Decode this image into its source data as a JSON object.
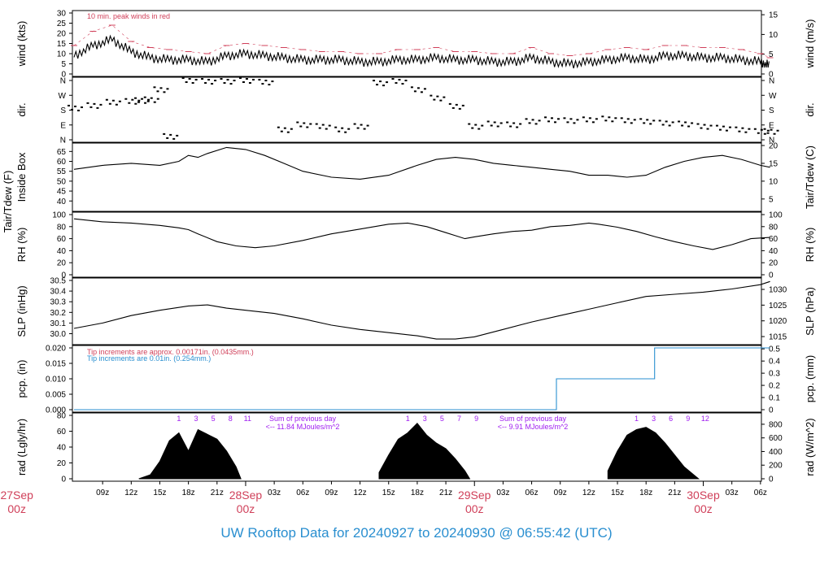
{
  "title": "UW Rooftop Data for 20240927  to  20240930 @ 06:55:42  (UTC)",
  "colors": {
    "red": "#d0405a",
    "blue": "#2a8fd0",
    "purple": "#a020f0",
    "black": "#000000"
  },
  "x_axis": {
    "hour_ticks": [
      "09z",
      "12z",
      "15z",
      "18z",
      "21z",
      "03z",
      "06z",
      "09z",
      "12z",
      "15z",
      "18z",
      "21z",
      "03z",
      "06z",
      "09z",
      "12z",
      "15z",
      "18z",
      "21z",
      "03z",
      "06z"
    ],
    "day_labels": [
      {
        "date": "27Sep",
        "time": "00z"
      },
      {
        "date": "28Sep",
        "time": "00z"
      },
      {
        "date": "29Sep",
        "time": "00z"
      },
      {
        "date": "30Sep",
        "time": "00z"
      }
    ]
  },
  "chart_data": [
    {
      "id": "wind",
      "type": "line",
      "ylabel_left": "wind (kts)",
      "ylabel_right": "wind (m/s)",
      "yticks_left": [
        "0",
        "5",
        "10",
        "15",
        "20",
        "25",
        "30"
      ],
      "yticks_right": [
        "0",
        "5",
        "10",
        "15"
      ],
      "ylim": [
        0,
        30
      ],
      "annotation": "10 min. peak winds in red",
      "series": [
        {
          "name": "wind",
          "x_hours": [
            6,
            8,
            10,
            12,
            14,
            16,
            18,
            20,
            22,
            24,
            26,
            28,
            30,
            32,
            34,
            36,
            38,
            40,
            42,
            44,
            46,
            48,
            50,
            52,
            54,
            56,
            58,
            60,
            62,
            64,
            66,
            68,
            70,
            72,
            74,
            76,
            78,
            79
          ],
          "values": [
            9,
            14,
            17,
            11,
            8,
            7,
            7,
            6,
            9,
            10,
            9,
            8,
            7,
            7,
            7,
            6,
            6,
            7,
            7,
            8,
            7,
            7,
            6,
            6,
            8,
            6,
            5,
            6,
            7,
            8,
            7,
            9,
            9,
            8,
            8,
            7,
            6,
            4
          ]
        },
        {
          "name": "10 min. peak winds",
          "x_hours": [
            6,
            8,
            10,
            12,
            14,
            16,
            18,
            20,
            22,
            24,
            26,
            28,
            30,
            32,
            34,
            36,
            38,
            40,
            42,
            44,
            46,
            48,
            50,
            52,
            54,
            56,
            58,
            60,
            62,
            64,
            66,
            68,
            70,
            72,
            74,
            76,
            78,
            79
          ],
          "values": [
            14,
            21,
            24,
            16,
            13,
            12,
            11,
            10,
            14,
            15,
            14,
            13,
            12,
            11,
            11,
            10,
            10,
            12,
            12,
            13,
            11,
            11,
            10,
            10,
            13,
            10,
            9,
            10,
            12,
            13,
            12,
            14,
            14,
            13,
            13,
            12,
            10,
            8
          ]
        }
      ]
    },
    {
      "id": "dir",
      "type": "scatter",
      "ylabel_left": "dir.",
      "ylabel_right": "dir.",
      "yticks_left": [
        "N",
        "E",
        "S",
        "W",
        "N"
      ],
      "yticks_right": [
        "N",
        "E",
        "S",
        "W",
        "N"
      ],
      "ylim": [
        0,
        360
      ],
      "series": [
        {
          "name": "direction",
          "x_hours": [
            6,
            8,
            10,
            12,
            13,
            14,
            15,
            16,
            18,
            20,
            22,
            24,
            26,
            28,
            30,
            32,
            34,
            36,
            38,
            40,
            42,
            44,
            46,
            48,
            50,
            52,
            54,
            56,
            58,
            60,
            62,
            64,
            66,
            68,
            70,
            72,
            74,
            76,
            78,
            79
          ],
          "values": [
            190,
            205,
            225,
            230,
            235,
            240,
            300,
            20,
            355,
            350,
            350,
            355,
            345,
            60,
            90,
            80,
            60,
            80,
            340,
            350,
            300,
            250,
            200,
            80,
            95,
            90,
            110,
            120,
            115,
            120,
            125,
            115,
            110,
            100,
            95,
            80,
            70,
            60,
            50,
            50
          ]
        }
      ]
    },
    {
      "id": "temp",
      "type": "line",
      "ylabel_left": "Tair/Tdew (F)",
      "ylabel_left2": "Inside Box",
      "ylabel_right": "Tair/Tdew (C)",
      "yticks_left": [
        "40",
        "45",
        "50",
        "55",
        "60",
        "65"
      ],
      "yticks_right": [
        "5",
        "10",
        "15",
        "20"
      ],
      "ylim": [
        36,
        68
      ],
      "series": [
        {
          "name": "Tair",
          "x_hours": [
            6,
            9,
            12,
            15,
            17,
            18,
            19,
            20,
            22,
            24,
            26,
            28,
            30,
            33,
            36,
            39,
            42,
            44,
            46,
            48,
            50,
            52,
            54,
            56,
            58,
            60,
            62,
            64,
            66,
            68,
            70,
            72,
            74,
            76,
            78,
            79
          ],
          "values": [
            56,
            58,
            59,
            58,
            60,
            63,
            62,
            64,
            67,
            66,
            63,
            59,
            55,
            52,
            51,
            53,
            58,
            61,
            62,
            61,
            59,
            58,
            57,
            56,
            55,
            53,
            53,
            52,
            53,
            57,
            60,
            62,
            63,
            61,
            58,
            57
          ]
        }
      ]
    },
    {
      "id": "rh",
      "type": "line",
      "ylabel_left": "RH (%)",
      "ylabel_right": "RH (%)",
      "yticks_left": [
        "0",
        "20",
        "40",
        "60",
        "80",
        "100"
      ],
      "yticks_right": [
        "0",
        "20",
        "40",
        "60",
        "80",
        "100"
      ],
      "ylim": [
        0,
        100
      ],
      "series": [
        {
          "name": "RH",
          "x_hours": [
            6,
            9,
            12,
            15,
            17,
            18,
            19,
            21,
            23,
            25,
            27,
            30,
            33,
            36,
            39,
            41,
            43,
            45,
            46,
            47,
            48,
            50,
            52,
            54,
            56,
            58,
            60,
            61,
            63,
            65,
            67,
            69,
            71,
            73,
            75,
            77,
            79
          ],
          "values": [
            93,
            88,
            86,
            82,
            78,
            75,
            68,
            55,
            48,
            45,
            48,
            57,
            68,
            76,
            84,
            86,
            80,
            70,
            65,
            60,
            63,
            68,
            72,
            74,
            80,
            82,
            86,
            84,
            79,
            72,
            63,
            55,
            48,
            42,
            50,
            60,
            62
          ]
        }
      ]
    },
    {
      "id": "slp",
      "type": "line",
      "ylabel_left": "SLP (inHg)",
      "ylabel_right": "SLP (hPa)",
      "yticks_left": [
        "30.0",
        "30.1",
        "30.2",
        "30.3",
        "30.4",
        "30.5"
      ],
      "yticks_right": [
        "1015",
        "1020",
        "1025",
        "1030"
      ],
      "ylim": [
        29.92,
        30.5
      ],
      "series": [
        {
          "name": "SLP",
          "x_hours": [
            6,
            9,
            12,
            15,
            18,
            20,
            22,
            24,
            27,
            30,
            33,
            36,
            39,
            42,
            44,
            46,
            48,
            51,
            54,
            57,
            60,
            63,
            66,
            69,
            72,
            75,
            78,
            79
          ],
          "values": [
            30.05,
            30.1,
            30.17,
            30.22,
            30.26,
            30.27,
            30.24,
            30.22,
            30.19,
            30.14,
            30.08,
            30.04,
            30.01,
            29.98,
            29.95,
            29.95,
            29.97,
            30.04,
            30.11,
            30.17,
            30.23,
            30.29,
            30.35,
            30.37,
            30.39,
            30.42,
            30.46,
            30.49
          ]
        }
      ]
    },
    {
      "id": "pcp",
      "type": "line",
      "ylabel_left": "pcp. (in)",
      "ylabel_right": "pcp. (mm)",
      "yticks_left": [
        "0.000",
        "0.005",
        "0.010",
        "0.015",
        "0.020"
      ],
      "yticks_right": [
        "0",
        "0.1",
        "0.2",
        "0.3",
        "0.4",
        "0.5"
      ],
      "ylim": [
        0,
        0.02
      ],
      "annotations": [
        "Tip increments are approx. 0.00171in. (0.0435mm.)",
        "Tip increments are 0.01in. (0.254mm.)"
      ],
      "series": [
        {
          "name": "pcp",
          "x_hours": [
            6,
            56.6,
            56.6,
            66.9,
            66.9,
            79
          ],
          "values": [
            0,
            0,
            0.01,
            0.01,
            0.02,
            0.02
          ]
        }
      ]
    },
    {
      "id": "rad",
      "type": "area",
      "ylabel_left": "rad (Lgly/hr)",
      "ylabel_right": "rad (W/m^2)",
      "yticks_left": [
        "0",
        "20",
        "40",
        "60",
        "80"
      ],
      "yticks_right": [
        "0",
        "200",
        "400",
        "600",
        "800"
      ],
      "ylim": [
        0,
        80
      ],
      "hour_markers_day1": [
        "1",
        "3",
        "5",
        "8",
        "11"
      ],
      "hour_markers_day2": [
        "1",
        "3",
        "5",
        "7",
        "9"
      ],
      "hour_markers_day3": [
        "1",
        "3",
        "6",
        "9",
        "12"
      ],
      "notes": [
        {
          "line1": "Sum of previous day",
          "line2": "<-- 11.84 MJoules/m^2"
        },
        {
          "line1": "Sum of previous day",
          "line2": "<-- 9.91 MJoules/m^2"
        }
      ],
      "series": [
        {
          "name": "solar radiation",
          "x_hours": [
            12.8,
            14,
            15,
            16,
            17,
            18,
            19,
            20,
            21,
            22,
            23,
            23.5,
            36.8,
            38,
            39,
            40,
            41,
            42,
            43,
            44,
            45,
            46,
            47,
            47.5,
            60.8,
            62,
            63,
            64,
            65,
            66,
            67,
            68,
            69,
            70,
            71,
            71.5
          ],
          "values": [
            0,
            5,
            22,
            48,
            58,
            35,
            62,
            56,
            50,
            35,
            15,
            0,
            0,
            8,
            30,
            50,
            58,
            70,
            55,
            45,
            38,
            25,
            10,
            0,
            0,
            10,
            35,
            55,
            62,
            65,
            58,
            45,
            30,
            15,
            5,
            0
          ]
        }
      ]
    }
  ]
}
